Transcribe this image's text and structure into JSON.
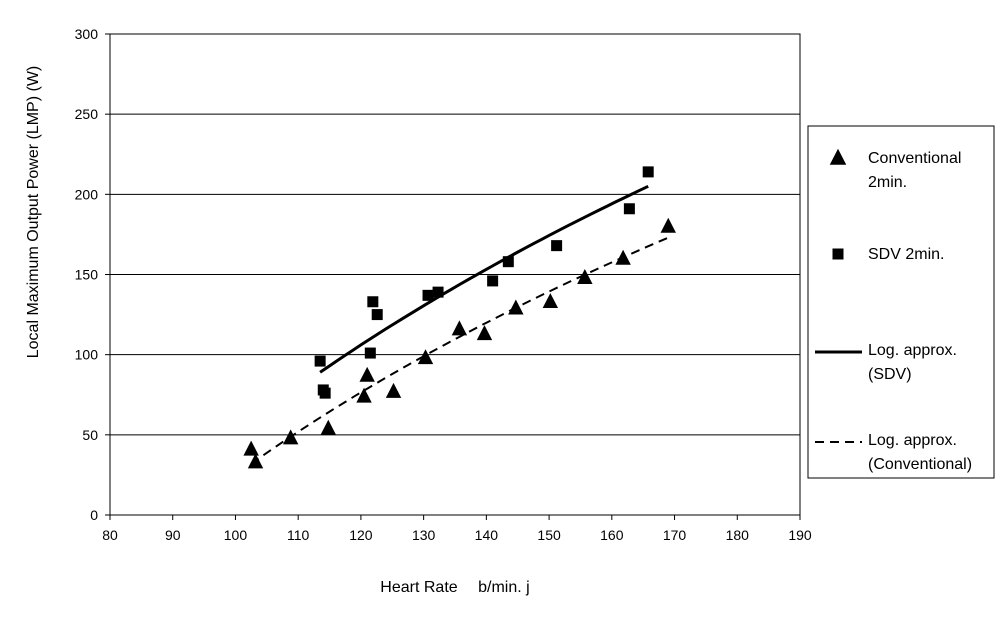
{
  "chart_data": {
    "type": "scatter",
    "xlabel": "Heart Rate　 b/min. j",
    "ylabel": "Local Maximum Output Power (LMP)  (W)",
    "xlim": [
      80,
      190
    ],
    "ylim": [
      0,
      300
    ],
    "xticks": [
      80,
      90,
      100,
      110,
      120,
      130,
      140,
      150,
      160,
      170,
      180,
      190
    ],
    "yticks": [
      0,
      50,
      100,
      150,
      200,
      250,
      300
    ],
    "grid": "horizontal",
    "legend_position": "right",
    "series": [
      {
        "name": "Conventional 2min.",
        "legend_lines": [
          "Conventional",
          "2min."
        ],
        "marker": "triangle",
        "points": [
          [
            102.5,
            41
          ],
          [
            103.2,
            33
          ],
          [
            108.8,
            48
          ],
          [
            114.8,
            54
          ],
          [
            120.5,
            74
          ],
          [
            121,
            87
          ],
          [
            125.2,
            77
          ],
          [
            130.3,
            98
          ],
          [
            135.7,
            116
          ],
          [
            139.7,
            113
          ],
          [
            144.7,
            129
          ],
          [
            150.2,
            133
          ],
          [
            155.7,
            148
          ],
          [
            161.8,
            160
          ],
          [
            169,
            180
          ]
        ]
      },
      {
        "name": "SDV 2min.",
        "legend_lines": [
          "SDV 2min."
        ],
        "marker": "square",
        "points": [
          [
            113.5,
            96
          ],
          [
            114,
            78
          ],
          [
            114.3,
            76
          ],
          [
            121.5,
            101
          ],
          [
            121.9,
            133
          ],
          [
            122.6,
            125
          ],
          [
            130.7,
            137
          ],
          [
            132.3,
            139
          ],
          [
            141,
            146
          ],
          [
            143.5,
            158
          ],
          [
            151.2,
            168
          ],
          [
            162.8,
            191
          ],
          [
            165.8,
            214
          ]
        ]
      },
      {
        "name": "Log. approx. (SDV)",
        "legend_lines": [
          "Log. approx.",
          "(SDV)"
        ],
        "marker": "line-solid",
        "fit": "logarithmic",
        "x_range": [
          113.5,
          165.8
        ],
        "points": [
          [
            113.5,
            89
          ],
          [
            165.8,
            205
          ]
        ]
      },
      {
        "name": "Log. approx. (Conventional)",
        "legend_lines": [
          "Log. approx.",
          "(Conventional)"
        ],
        "marker": "line-dashed",
        "fit": "logarithmic",
        "x_range": [
          102.5,
          169
        ],
        "points": [
          [
            102.5,
            32
          ],
          [
            169,
            173
          ]
        ]
      }
    ]
  }
}
